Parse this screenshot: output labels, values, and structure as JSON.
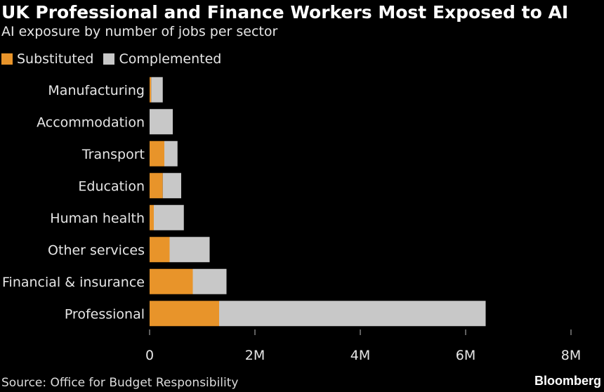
{
  "title": "UK Professional and Finance Workers Most Exposed to AI",
  "subtitle": "AI exposure by number of jobs per sector",
  "legend": [
    {
      "label": "Substituted",
      "color": "#e8942a"
    },
    {
      "label": "Complemented",
      "color": "#c8c8c8"
    }
  ],
  "source": "Source: Office for Budget Responsibility",
  "brand": "Bloomberg",
  "chart_data": {
    "type": "bar",
    "orientation": "horizontal",
    "stacked": true,
    "title": "UK Professional and Finance Workers Most Exposed to AI",
    "subtitle": "AI exposure by number of jobs per sector",
    "categories": [
      "Manufacturing",
      "Accommodation",
      "Transport",
      "Education",
      "Human health",
      "Other services",
      "Financial & insurance",
      "Professional"
    ],
    "series": [
      {
        "name": "Substituted",
        "color": "#e8942a",
        "values": [
          30000,
          0,
          280000,
          250000,
          80000,
          380000,
          820000,
          1320000
        ]
      },
      {
        "name": "Complemented",
        "color": "#c8c8c8",
        "values": [
          220000,
          440000,
          250000,
          350000,
          570000,
          760000,
          640000,
          5060000
        ]
      }
    ],
    "xlim": [
      0,
      8000000
    ],
    "xticks": [
      0,
      2000000,
      4000000,
      6000000,
      8000000
    ],
    "xtick_labels": [
      "0",
      "2M",
      "4M",
      "6M",
      "8M"
    ],
    "xlabel": "",
    "ylabel": "",
    "legend_position": "top-left",
    "grid": false
  }
}
